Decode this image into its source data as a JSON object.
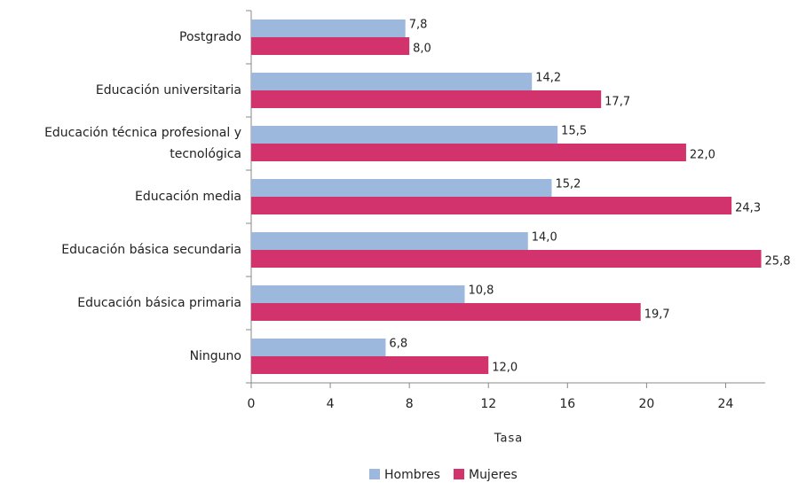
{
  "chart_data": {
    "type": "hbar",
    "x_label": "Tasa",
    "categories": [
      "Postgrado",
      "Educación universitaria",
      "Educación técnica profesional y tecnológica",
      "Educación media",
      "Educación básica secundaria",
      "Educación básica primaria",
      "Ninguno"
    ],
    "series": [
      {
        "name": "Hombres",
        "color": "#9db8dd",
        "values": [
          7.8,
          14.2,
          15.5,
          15.2,
          14.0,
          10.8,
          6.8
        ],
        "value_labels": [
          "7,8",
          "14,2",
          "15,5",
          "15,2",
          "14,0",
          "10,8",
          "6,8"
        ]
      },
      {
        "name": "Mujeres",
        "color": "#d2336c",
        "values": [
          8.0,
          17.7,
          22.0,
          24.3,
          25.8,
          19.7,
          12.0
        ],
        "value_labels": [
          "8,0",
          "17,7",
          "22,0",
          "24,3",
          "25,8",
          "19,7",
          "12,0"
        ]
      }
    ],
    "xlim": [
      0,
      26
    ],
    "xticks": [
      0,
      4,
      8,
      12,
      16,
      20,
      24
    ],
    "legend": "bottom"
  }
}
